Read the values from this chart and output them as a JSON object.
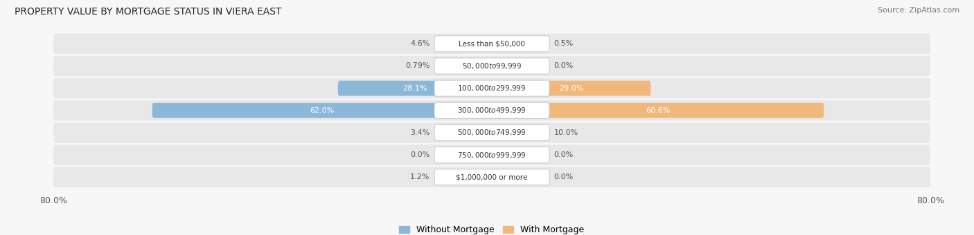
{
  "title": "PROPERTY VALUE BY MORTGAGE STATUS IN VIERA EAST",
  "source": "Source: ZipAtlas.com",
  "categories": [
    "Less than $50,000",
    "$50,000 to $99,999",
    "$100,000 to $299,999",
    "$300,000 to $499,999",
    "$500,000 to $749,999",
    "$750,000 to $999,999",
    "$1,000,000 or more"
  ],
  "without_mortgage": [
    4.6,
    0.79,
    28.1,
    62.0,
    3.4,
    0.0,
    1.2
  ],
  "with_mortgage": [
    0.5,
    0.0,
    29.0,
    60.6,
    10.0,
    0.0,
    0.0
  ],
  "without_labels": [
    "4.6%",
    "0.79%",
    "28.1%",
    "62.0%",
    "3.4%",
    "0.0%",
    "1.2%"
  ],
  "with_labels": [
    "0.5%",
    "0.0%",
    "29.0%",
    "60.6%",
    "10.0%",
    "0.0%",
    "0.0%"
  ],
  "xlim": 80.0,
  "bar_color_without": "#8cb8d8",
  "bar_color_with": "#f0b87a",
  "bg_row_color": "#e8e8e8",
  "bg_color": "#f7f7f7",
  "title_fontsize": 10,
  "source_fontsize": 8,
  "tick_fontsize": 9,
  "bar_label_fontsize": 8,
  "category_fontsize": 7.5,
  "legend_fontsize": 9
}
